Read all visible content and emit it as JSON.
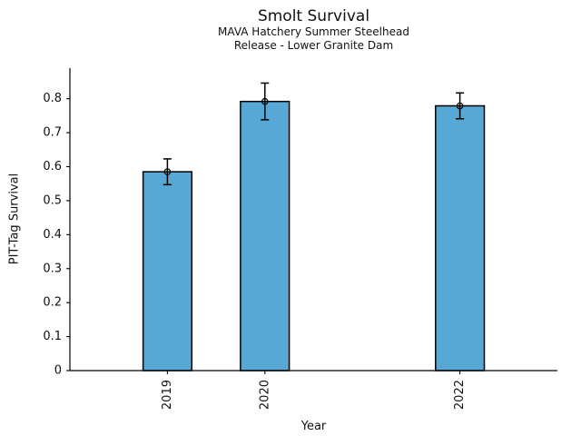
{
  "chart_data": {
    "type": "bar",
    "title": "Smolt Survival",
    "subtitle": [
      "MAVA Hatchery Summer Steelhead",
      "Release - Lower Granite Dam"
    ],
    "xlabel": "Year",
    "ylabel": "PIT-Tag Survival",
    "categories": [
      "2019",
      "2020",
      "2022"
    ],
    "x": [
      2019,
      2020,
      2022
    ],
    "values": [
      0.585,
      0.792,
      0.779
    ],
    "errors": [
      0.038,
      0.054,
      0.038
    ],
    "xlim": [
      2018,
      2023
    ],
    "ylim": [
      0,
      0.89
    ],
    "yticks": [
      0,
      0.1,
      0.2,
      0.3,
      0.4,
      0.5,
      0.6,
      0.7,
      0.8
    ],
    "ytick_labels": [
      "0",
      "0.1",
      "0.2",
      "0.3",
      "0.4",
      "0.5",
      "0.6",
      "0.7",
      "0.8"
    ],
    "bar_width_years": 0.5,
    "x_tick_rotation": 90,
    "grid": false,
    "legend": "none",
    "bar_color": "#57A8D4",
    "bar_edge_color": "#000000",
    "error_bar_color": "#000000",
    "marker": "open-circle",
    "axis_color": "#000000",
    "background_color": "#ffffff"
  }
}
